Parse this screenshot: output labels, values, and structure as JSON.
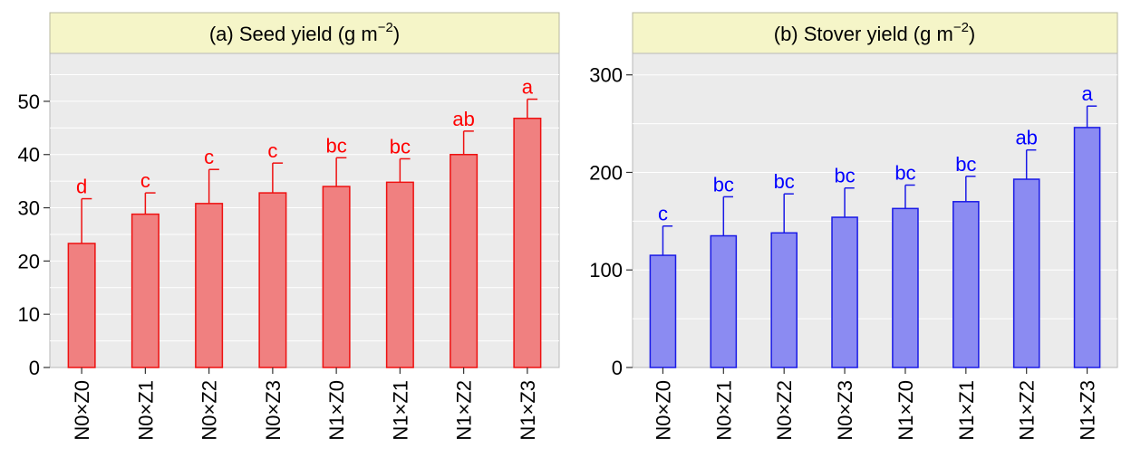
{
  "chart_data": [
    {
      "type": "bar",
      "title": "(a) Seed yield (g m",
      "title_superscript": "−2",
      "title_close": ")",
      "categories": [
        "N0×Z0",
        "N0×Z1",
        "N0×Z2",
        "N0×Z3",
        "N1×Z0",
        "N1×Z1",
        "N1×Z2",
        "N1×Z3"
      ],
      "values": [
        23.3,
        28.8,
        30.8,
        32.8,
        34.0,
        34.8,
        40.0,
        46.8
      ],
      "error_upper": [
        31.7,
        32.8,
        37.2,
        38.4,
        39.4,
        39.2,
        44.4,
        50.4
      ],
      "significance_letters": [
        "d",
        "c",
        "c",
        "c",
        "bc",
        "bc",
        "ab",
        "a"
      ],
      "ylim": [
        0,
        59
      ],
      "yticks": [
        0,
        10,
        20,
        30,
        40,
        50
      ],
      "ytick_labels": [
        "0",
        "10",
        "20",
        "30",
        "40",
        "50"
      ],
      "grid": true,
      "xlabel": "",
      "ylabel": "",
      "colors": {
        "fill": "#f08080",
        "stroke": "#ee1111",
        "text": "#ff0000"
      }
    },
    {
      "type": "bar",
      "title": "(b) Stover yield (g m",
      "title_superscript": "−2",
      "title_close": ")",
      "categories": [
        "N0×Z0",
        "N0×Z1",
        "N0×Z2",
        "N0×Z3",
        "N1×Z0",
        "N1×Z1",
        "N1×Z2",
        "N1×Z3"
      ],
      "values": [
        115,
        135,
        138,
        154,
        163,
        170,
        193,
        246
      ],
      "error_upper": [
        145,
        175,
        178,
        184,
        187,
        196,
        223,
        268
      ],
      "significance_letters": [
        "c",
        "bc",
        "bc",
        "bc",
        "bc",
        "bc",
        "ab",
        "a"
      ],
      "ylim": [
        0,
        322
      ],
      "yticks": [
        0,
        100,
        200,
        300
      ],
      "ytick_labels": [
        "0",
        "100",
        "200",
        "300"
      ],
      "grid": true,
      "xlabel": "",
      "ylabel": "",
      "colors": {
        "fill": "#8b8bf2",
        "stroke": "#1a1ae6",
        "text": "#0000ff"
      }
    }
  ]
}
